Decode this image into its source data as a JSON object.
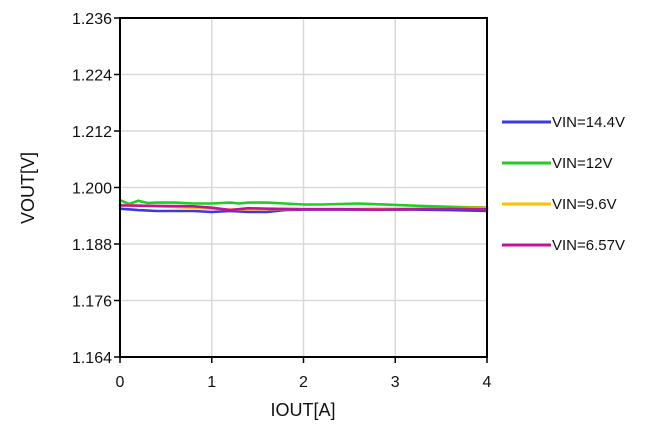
{
  "chart_data": {
    "type": "line",
    "xlabel": "IOUT[A]",
    "ylabel": "VOUT[V]",
    "xlim": [
      0,
      4
    ],
    "ylim": [
      1.164,
      1.236
    ],
    "x_ticks": [
      "0",
      "1",
      "2",
      "3",
      "4"
    ],
    "y_ticks": [
      "1.164",
      "1.176",
      "1.188",
      "1.200",
      "1.212",
      "1.224",
      "1.236"
    ],
    "grid": true,
    "legend_position": "right",
    "series": [
      {
        "name": "VIN=14.4V",
        "color": "#3a3ae0",
        "x": [
          0,
          0.2,
          0.4,
          0.6,
          0.8,
          1.0,
          1.2,
          1.4,
          1.6,
          1.8,
          2.0,
          2.4,
          2.8,
          3.2,
          3.6,
          4.0
        ],
        "y": [
          1.1955,
          1.1952,
          1.195,
          1.195,
          1.195,
          1.1948,
          1.195,
          1.1948,
          1.1948,
          1.1952,
          1.1953,
          1.1953,
          1.1953,
          1.1953,
          1.1952,
          1.195
        ]
      },
      {
        "name": "VIN=12V",
        "color": "#22cc22",
        "x": [
          0,
          0.1,
          0.2,
          0.3,
          0.4,
          0.6,
          0.8,
          1.0,
          1.2,
          1.3,
          1.4,
          1.6,
          1.8,
          2.0,
          2.2,
          2.6,
          3.0,
          3.4,
          3.8,
          4.0
        ],
        "y": [
          1.1973,
          1.1965,
          1.1972,
          1.1967,
          1.1968,
          1.1968,
          1.1966,
          1.1966,
          1.1968,
          1.1966,
          1.1968,
          1.1968,
          1.1966,
          1.1964,
          1.1964,
          1.1966,
          1.1963,
          1.196,
          1.1958,
          1.1958
        ]
      },
      {
        "name": "VIN=9.6V",
        "color": "#ffc000",
        "x": [
          0,
          0.4,
          0.8,
          1.0,
          1.2,
          1.6,
          2.0,
          2.4,
          2.8,
          3.2,
          3.6,
          4.0
        ],
        "y": [
          1.1963,
          1.196,
          1.1957,
          1.1955,
          1.1953,
          1.1954,
          1.1954,
          1.1954,
          1.1955,
          1.1955,
          1.1956,
          1.1957
        ]
      },
      {
        "name": "VIN=6.57V",
        "color": "#c0139a",
        "x": [
          0,
          0.4,
          0.8,
          1.0,
          1.2,
          1.4,
          1.6,
          2.0,
          2.4,
          2.8,
          3.2,
          3.6,
          4.0
        ],
        "y": [
          1.1962,
          1.1961,
          1.196,
          1.1957,
          1.1952,
          1.1956,
          1.1955,
          1.1954,
          1.1954,
          1.1953,
          1.1954,
          1.1955,
          1.1954
        ]
      }
    ]
  }
}
